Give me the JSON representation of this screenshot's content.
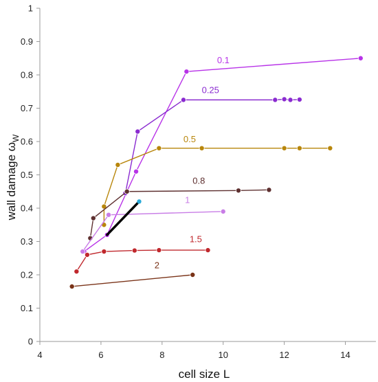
{
  "chart_data": {
    "type": "line",
    "xlabel": "cell size L",
    "ylabel": "wall damage ω",
    "ylabel_sub": "W",
    "xlim": [
      4,
      15
    ],
    "ylim": [
      0,
      1
    ],
    "x_ticks": [
      "4",
      "6",
      "8",
      "10",
      "12",
      "14"
    ],
    "y_ticks": [
      "0",
      "0.1",
      "0.2",
      "0.3",
      "0.4",
      "0.5",
      "0.6",
      "0.7",
      "0.8",
      "0.9",
      "1"
    ],
    "grid": false,
    "series": [
      {
        "name": "0.1",
        "color": "#b833e8",
        "label_pos": [
          9.8,
          0.835
        ],
        "points": [
          [
            5.45,
            0.27
          ],
          [
            6.2,
            0.32
          ],
          [
            7.15,
            0.51
          ],
          [
            8.8,
            0.81
          ],
          [
            14.5,
            0.85
          ]
        ]
      },
      {
        "name": "0.25",
        "color": "#8a2bd0",
        "label_pos": [
          9.3,
          0.745
        ],
        "points": [
          [
            6.8,
            0.445
          ],
          [
            7.2,
            0.63
          ],
          [
            8.7,
            0.725
          ],
          [
            11.7,
            0.725
          ],
          [
            12.0,
            0.727
          ],
          [
            12.2,
            0.725
          ],
          [
            12.5,
            0.726
          ]
        ]
      },
      {
        "name": "0.5",
        "color": "#b8860b",
        "label_pos": [
          8.7,
          0.598
        ],
        "points": [
          [
            6.1,
            0.35
          ],
          [
            6.1,
            0.405
          ],
          [
            6.55,
            0.53
          ],
          [
            7.9,
            0.58
          ],
          [
            9.3,
            0.58
          ],
          [
            12.0,
            0.58
          ],
          [
            12.5,
            0.58
          ],
          [
            13.5,
            0.58
          ]
        ]
      },
      {
        "name": "0.8",
        "color": "#5e3030",
        "label_pos": [
          9.0,
          0.473
        ],
        "points": [
          [
            5.65,
            0.31
          ],
          [
            5.75,
            0.37
          ],
          [
            6.85,
            0.45
          ],
          [
            10.5,
            0.453
          ],
          [
            11.5,
            0.455
          ]
        ]
      },
      {
        "name": "1",
        "color": "#c87de6",
        "label_pos": [
          8.75,
          0.415
        ],
        "points": [
          [
            5.4,
            0.27
          ],
          [
            6.25,
            0.38
          ],
          [
            10.0,
            0.39
          ]
        ]
      },
      {
        "name": "1.5",
        "color": "#c0282d",
        "label_pos": [
          8.9,
          0.298
        ],
        "points": [
          [
            5.2,
            0.21
          ],
          [
            5.55,
            0.26
          ],
          [
            6.1,
            0.27
          ],
          [
            7.1,
            0.273
          ],
          [
            7.9,
            0.274
          ],
          [
            9.5,
            0.274
          ]
        ]
      },
      {
        "name": "2",
        "color": "#7a3318",
        "label_pos": [
          7.75,
          0.22
        ],
        "points": [
          [
            5.05,
            0.165
          ],
          [
            9.0,
            0.2
          ]
        ]
      }
    ]
  }
}
